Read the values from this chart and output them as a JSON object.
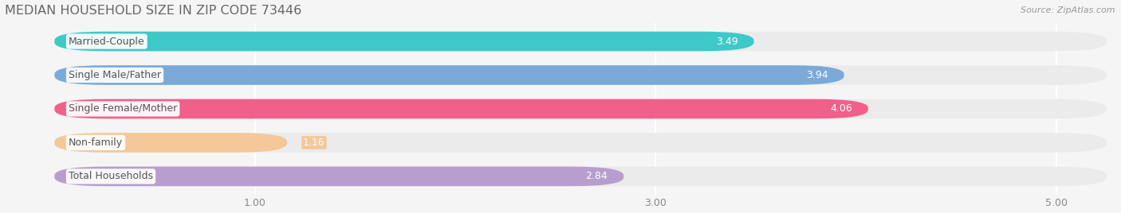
{
  "title": "MEDIAN HOUSEHOLD SIZE IN ZIP CODE 73446",
  "source": "Source: ZipAtlas.com",
  "categories": [
    "Married-Couple",
    "Single Male/Father",
    "Single Female/Mother",
    "Non-family",
    "Total Households"
  ],
  "values": [
    3.49,
    3.94,
    4.06,
    1.16,
    2.84
  ],
  "bar_colors": [
    "#3ec8c8",
    "#7baad8",
    "#f0608a",
    "#f5c898",
    "#b89ece"
  ],
  "xlim_left": -0.25,
  "xlim_right": 5.3,
  "xticks": [
    1.0,
    3.0,
    5.0
  ],
  "xtick_labels": [
    "1.00",
    "3.00",
    "5.00"
  ],
  "label_fontsize": 9.0,
  "value_fontsize": 9.0,
  "title_fontsize": 11.5,
  "background_color": "#f5f5f5",
  "bar_bg_color": "#efefef",
  "bar_height": 0.58,
  "bar_gap": 1.0
}
